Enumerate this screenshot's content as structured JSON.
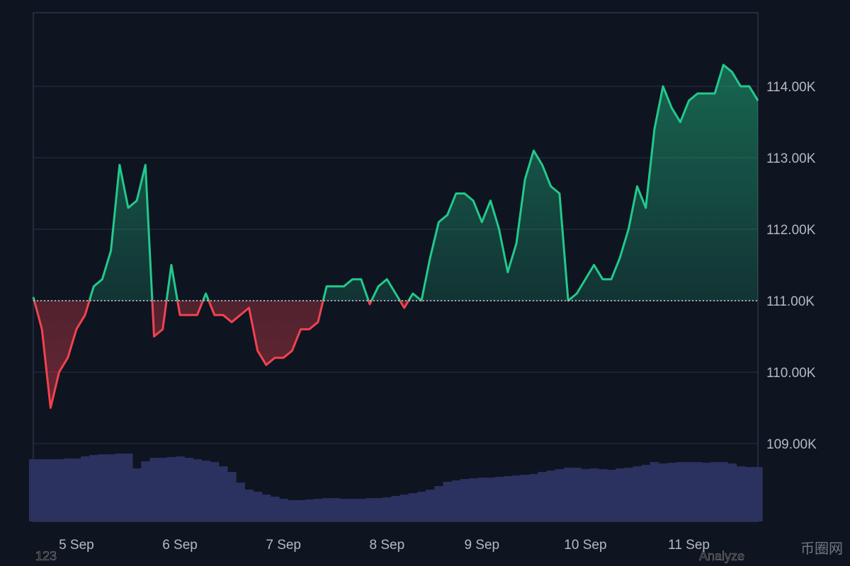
{
  "chart_data": {
    "type": "baseline",
    "categories": [
      null,
      null,
      null,
      null,
      null,
      "5 Sep",
      null,
      null,
      null,
      null,
      null,
      null,
      null,
      null,
      null,
      null,
      null,
      "6 Sep",
      null,
      null,
      null,
      null,
      null,
      null,
      null,
      null,
      null,
      null,
      null,
      "7 Sep",
      null,
      null,
      null,
      null,
      null,
      null,
      null,
      null,
      null,
      null,
      null,
      "8 Sep",
      null,
      null,
      null,
      null,
      null,
      null,
      null,
      null,
      null,
      null,
      "9 Sep",
      null,
      null,
      null,
      null,
      null,
      null,
      null,
      null,
      null,
      null,
      null,
      "10 Sep",
      null,
      null,
      null,
      null,
      null,
      null,
      null,
      null,
      null,
      null,
      null,
      "11 Sep",
      null,
      null,
      null,
      null,
      null,
      null,
      null,
      null
    ],
    "baseline": 111000,
    "series": [
      {
        "up_color": "#22c98b",
        "down_color": "#f0434f",
        "values": [
          111050,
          110600,
          109500,
          110000,
          110200,
          110600,
          110800,
          111200,
          111300,
          111700,
          112900,
          112300,
          112400,
          112900,
          110500,
          110600,
          111500,
          110800,
          110800,
          110800,
          111100,
          110800,
          110800,
          110700,
          110800,
          110900,
          110300,
          110100,
          110200,
          110200,
          110300,
          110600,
          110600,
          110700,
          111200,
          111200,
          111200,
          111300,
          111300,
          110950,
          111200,
          111300,
          111100,
          110900,
          111100,
          111000,
          111600,
          112100,
          112200,
          112500,
          112500,
          112400,
          112100,
          112400,
          112000,
          111400,
          111800,
          112700,
          113100,
          112900,
          112600,
          112500,
          111000,
          111100,
          111300,
          111500,
          111300,
          111300,
          111600,
          112000,
          112600,
          112300,
          113400,
          114000,
          113700,
          113500,
          113800,
          113900,
          113900,
          113900,
          114300,
          114200,
          114000,
          114000,
          113800
        ]
      },
      {
        "axis": "y2",
        "color": "#2b3260",
        "values": [
          88,
          88,
          88,
          88,
          89,
          89,
          92,
          94,
          95,
          95,
          96,
          96,
          75,
          85,
          90,
          90,
          91,
          92,
          90,
          88,
          86,
          84,
          78,
          70,
          55,
          45,
          42,
          38,
          35,
          32,
          30,
          30,
          31,
          32,
          33,
          33,
          32,
          32,
          32,
          33,
          33,
          34,
          36,
          38,
          40,
          42,
          45,
          50,
          56,
          58,
          60,
          61,
          62,
          62,
          63,
          64,
          65,
          66,
          67,
          70,
          72,
          74,
          76,
          76,
          74,
          75,
          74,
          73,
          75,
          76,
          78,
          80,
          84,
          82,
          83,
          84,
          84,
          84,
          83,
          84,
          84,
          82,
          78,
          77,
          77
        ]
      }
    ],
    "ylim": [
      107910,
      115030
    ],
    "yticks": [
      {
        "value": 109000,
        "label": "109.00K"
      },
      {
        "value": 110000,
        "label": "110.00K"
      },
      {
        "value": 111000,
        "label": "111.00K"
      },
      {
        "value": 112000,
        "label": "112.00K"
      },
      {
        "value": 113000,
        "label": "113.00K"
      },
      {
        "value": 114000,
        "label": "114.00K"
      }
    ],
    "y2lim": [
      0,
      720
    ],
    "grid": true,
    "footer_left": "123",
    "footer_right": "Analyze",
    "watermark": "币圈网"
  }
}
